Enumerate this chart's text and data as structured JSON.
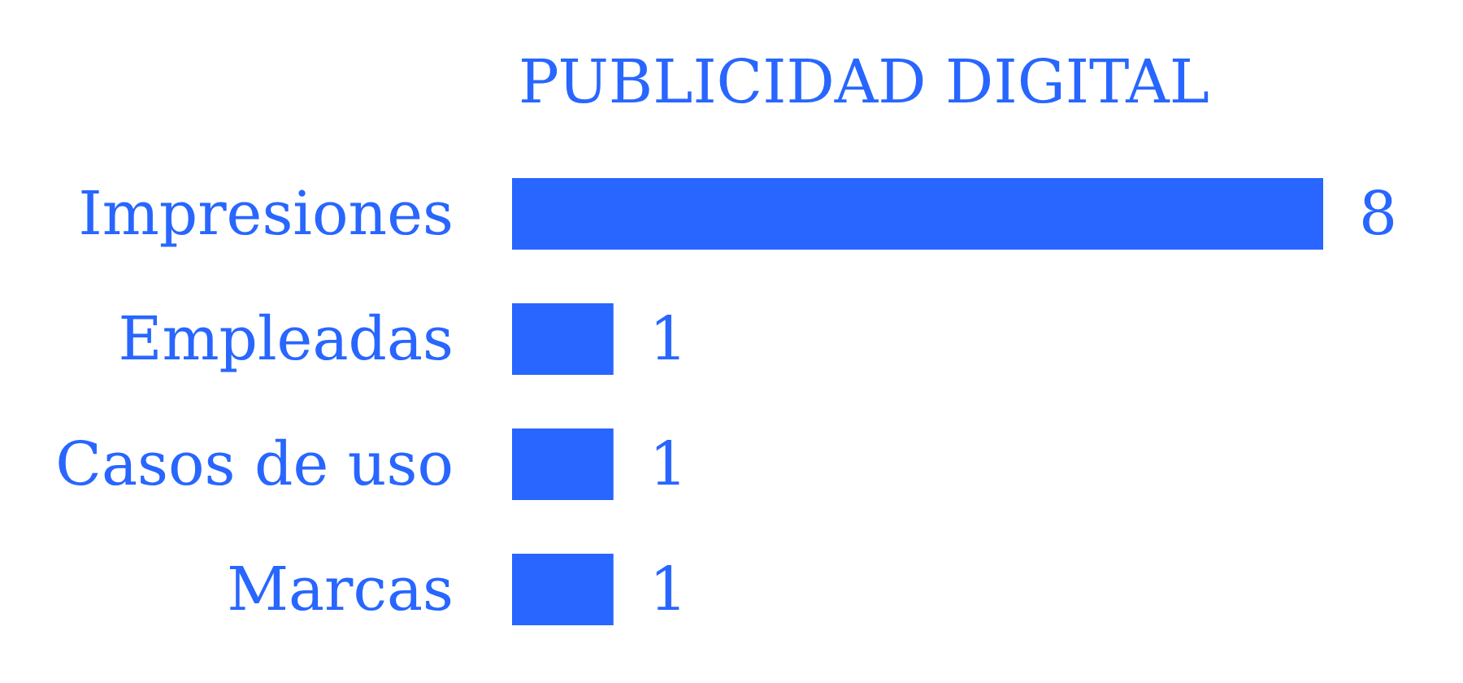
{
  "chart_data": {
    "type": "bar",
    "orientation": "horizontal",
    "title": "PUBLICIDAD DIGITAL",
    "categories": [
      "Impresiones",
      "Empleadas",
      "Casos de uso",
      "Marcas"
    ],
    "values": [
      8,
      1,
      1,
      1
    ],
    "color": "#2866ff",
    "data_labels": true,
    "grid": false
  }
}
